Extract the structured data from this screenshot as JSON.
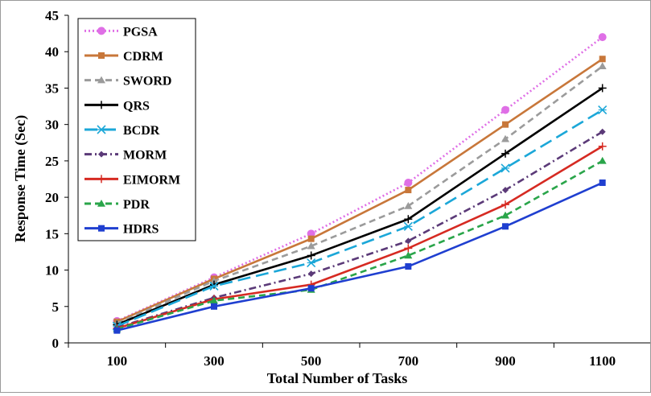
{
  "chart_data": {
    "type": "line",
    "title": "",
    "xlabel": "Total Number of Tasks",
    "ylabel": "Response Time (Sec)",
    "x": [
      100,
      300,
      500,
      700,
      900,
      1100
    ],
    "ylim": [
      0,
      45
    ],
    "yticks": [
      0,
      5,
      10,
      15,
      20,
      25,
      30,
      35,
      40,
      45
    ],
    "grid": false,
    "legend": "top-left",
    "series": [
      {
        "name": "PGSA",
        "values": [
          3.0,
          9.0,
          15.0,
          22.0,
          32.0,
          42.0
        ],
        "color": "#df6fe6",
        "marker": "circle",
        "dash": "dot"
      },
      {
        "name": "CDRM",
        "values": [
          2.9,
          8.8,
          14.3,
          21.0,
          30.0,
          39.0
        ],
        "color": "#c8773a",
        "marker": "square",
        "dash": "solid"
      },
      {
        "name": "SWORD",
        "values": [
          2.7,
          8.5,
          13.3,
          18.8,
          28.0,
          38.0
        ],
        "color": "#9b9b9b",
        "marker": "triangle",
        "dash": "dash"
      },
      {
        "name": "QRS",
        "values": [
          2.5,
          8.0,
          12.0,
          17.0,
          26.0,
          35.0
        ],
        "color": "#000000",
        "marker": "plus",
        "dash": "solid"
      },
      {
        "name": "BCDR",
        "values": [
          2.3,
          7.8,
          11.0,
          16.0,
          24.0,
          32.0
        ],
        "color": "#1ba7d8",
        "marker": "asterisk",
        "dash": "longdash"
      },
      {
        "name": "MORM",
        "values": [
          2.1,
          6.2,
          9.5,
          14.0,
          21.0,
          29.0
        ],
        "color": "#5b3a78",
        "marker": "diamond",
        "dash": "dashdot"
      },
      {
        "name": "EIMORM",
        "values": [
          2.0,
          6.0,
          8.0,
          13.0,
          19.0,
          27.0
        ],
        "color": "#d62a22",
        "marker": "plus",
        "dash": "solid"
      },
      {
        "name": "PDR",
        "values": [
          1.9,
          5.8,
          7.3,
          12.0,
          17.5,
          25.0
        ],
        "color": "#2aa54a",
        "marker": "triangle",
        "dash": "dash"
      },
      {
        "name": "HDRS",
        "values": [
          1.7,
          5.0,
          7.5,
          10.5,
          16.0,
          22.0
        ],
        "color": "#1f3fd0",
        "marker": "square",
        "dash": "solid"
      }
    ]
  }
}
